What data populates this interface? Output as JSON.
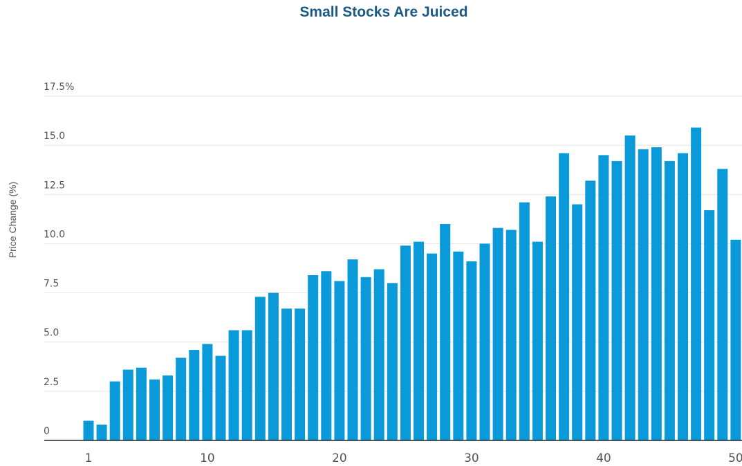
{
  "chart_data": {
    "type": "bar",
    "title": "Small Stocks Are Juiced",
    "ylabel": "Price Change (%)",
    "xlabel": "",
    "ylim": [
      0,
      17.5
    ],
    "yticks": [
      "0",
      "2.5",
      "5.0",
      "7.5",
      "10.0",
      "12.5",
      "15.0",
      "17.5%"
    ],
    "xticks": [
      "1",
      "10",
      "20",
      "30",
      "40",
      "50"
    ],
    "grid": true,
    "bar_color": "#0a99d9",
    "categories": [
      1,
      2,
      3,
      4,
      5,
      6,
      7,
      8,
      9,
      10,
      11,
      12,
      13,
      14,
      15,
      16,
      17,
      18,
      19,
      20,
      21,
      22,
      23,
      24,
      25,
      26,
      27,
      28,
      29,
      30,
      31,
      32,
      33,
      34,
      35,
      36,
      37,
      38,
      39,
      40,
      41,
      42,
      43,
      44,
      45,
      46,
      47,
      48,
      49,
      50
    ],
    "values": [
      1.0,
      0.8,
      3.0,
      3.6,
      3.7,
      3.1,
      3.3,
      4.2,
      4.6,
      4.9,
      4.3,
      5.6,
      5.6,
      7.3,
      7.5,
      6.7,
      6.7,
      8.4,
      8.6,
      8.1,
      9.2,
      8.3,
      8.7,
      8.0,
      9.9,
      10.1,
      9.5,
      11.0,
      9.6,
      9.1,
      10.0,
      10.8,
      10.7,
      12.1,
      10.1,
      12.4,
      14.6,
      12.0,
      13.2,
      14.5,
      14.2,
      15.5,
      14.8,
      14.9,
      14.2,
      14.6,
      15.9,
      11.7,
      13.8,
      10.2
    ]
  }
}
